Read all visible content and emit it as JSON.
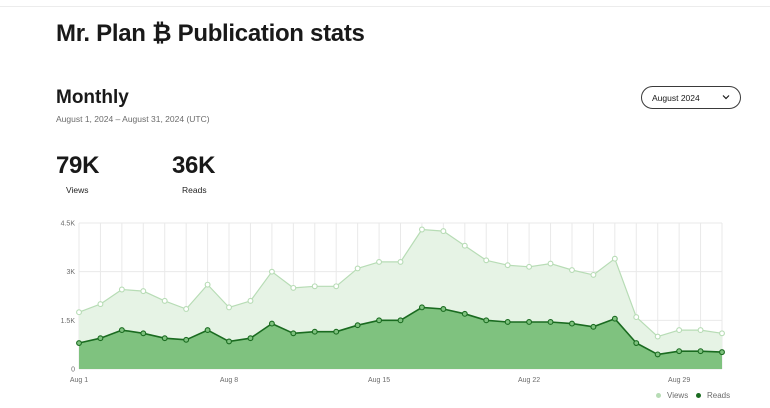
{
  "header": {
    "title": "Mr. Plan ₿ Publication stats"
  },
  "section": {
    "title": "Monthly",
    "date_range": "August 1, 2024 – August 31, 2024 (UTC)"
  },
  "month_select": {
    "value": "August 2024"
  },
  "stats": {
    "views_value": "79K",
    "views_label": "Views",
    "reads_value": "36K",
    "reads_label": "Reads"
  },
  "legend": {
    "views": "Views",
    "reads": "Reads"
  },
  "colors": {
    "views_line": "#b7dcb5",
    "views_fill": "#e6f3e5",
    "reads_line": "#1a6b20",
    "reads_fill": "#7fc27f",
    "grid": "#e9e9e9"
  },
  "chart_data": {
    "type": "area",
    "x": [
      "Aug 1",
      "Aug 2",
      "Aug 3",
      "Aug 4",
      "Aug 5",
      "Aug 6",
      "Aug 7",
      "Aug 8",
      "Aug 9",
      "Aug 10",
      "Aug 11",
      "Aug 12",
      "Aug 13",
      "Aug 14",
      "Aug 15",
      "Aug 16",
      "Aug 17",
      "Aug 18",
      "Aug 19",
      "Aug 20",
      "Aug 21",
      "Aug 22",
      "Aug 23",
      "Aug 24",
      "Aug 25",
      "Aug 26",
      "Aug 27",
      "Aug 28",
      "Aug 29",
      "Aug 30",
      "Aug 31"
    ],
    "x_tick_labels": [
      "Aug 1",
      "Aug 8",
      "Aug 15",
      "Aug 22",
      "Aug 29"
    ],
    "y_tick_labels": [
      "0",
      "1.5K",
      "3K",
      "4.5K"
    ],
    "ylim": [
      0,
      4500
    ],
    "grid": true,
    "legend_position": "bottom-right",
    "series": [
      {
        "name": "Views",
        "values": [
          1750,
          2000,
          2450,
          2400,
          2100,
          1850,
          2600,
          1900,
          2100,
          3000,
          2500,
          2550,
          2550,
          3100,
          3300,
          3300,
          4300,
          4250,
          3800,
          3350,
          3200,
          3150,
          3250,
          3050,
          2900,
          3400,
          1600,
          1000,
          1200,
          1200,
          1100
        ]
      },
      {
        "name": "Reads",
        "values": [
          800,
          950,
          1200,
          1100,
          950,
          900,
          1200,
          850,
          950,
          1400,
          1100,
          1150,
          1150,
          1350,
          1500,
          1500,
          1900,
          1850,
          1700,
          1500,
          1450,
          1450,
          1450,
          1400,
          1300,
          1550,
          800,
          450,
          550,
          550,
          520
        ]
      }
    ]
  }
}
